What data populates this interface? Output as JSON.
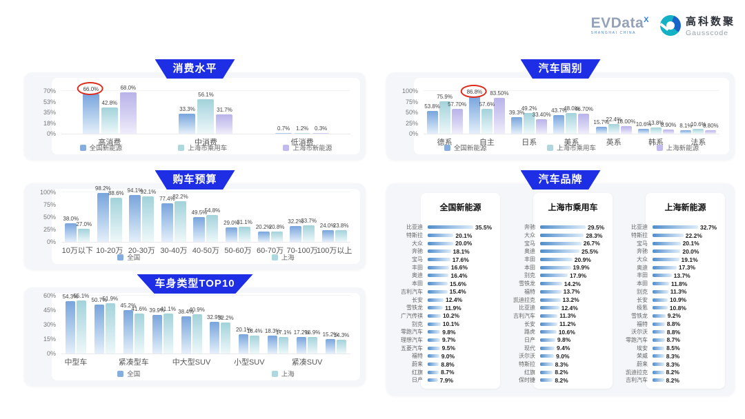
{
  "header": {
    "evdata": "EVData",
    "evdata_sup": "X",
    "evdata_subtitle": "SHANGHAI CHINA",
    "gausscode_cn": "高科数聚",
    "gausscode_en": "Gausscode"
  },
  "colors": {
    "badge_blue": "#1d2ee4",
    "series_blue": "#85aede",
    "series_teal": "#aed8de",
    "series_purple": "#c0bbec",
    "annotation_red": "#dd2b1b"
  },
  "chart_data": [
    {
      "id": "consumption",
      "type": "bar",
      "title": "消费水平",
      "y_ticks": [
        "70%",
        "53%",
        "35%",
        "18%",
        "0%"
      ],
      "ymax": 70,
      "categories": [
        "高消费",
        "中消费",
        "低消费"
      ],
      "series": [
        {
          "name": "全国新能源",
          "color": "blue",
          "values": [
            66.0,
            33.3,
            0.7
          ],
          "labels": [
            "66.0%",
            "33.3%",
            "0.7%"
          ]
        },
        {
          "name": "上海市乘用车",
          "color": "teal",
          "values": [
            42.8,
            56.1,
            1.2
          ],
          "labels": [
            "42.8%",
            "56.1%",
            "1.2%"
          ]
        },
        {
          "name": "上海市新能源",
          "color": "purple",
          "values": [
            68.0,
            31.7,
            0.3
          ],
          "labels": [
            "68.0%",
            "31.7%",
            "0.3%"
          ]
        }
      ],
      "annotation": {
        "shape": "red-circle",
        "series": 0,
        "category": 0,
        "label": "66.0%"
      }
    },
    {
      "id": "budget",
      "type": "bar",
      "title": "购车预算",
      "y_ticks": [
        "100%",
        "75%",
        "50%",
        "25%",
        "0%"
      ],
      "ymax": 100,
      "categories": [
        "10万以下",
        "10-20万",
        "20-30万",
        "30-40万",
        "40-50万",
        "50-60万",
        "60-70万",
        "70-100万",
        "100万以上"
      ],
      "series": [
        {
          "name": "全国",
          "color": "blue",
          "values": [
            38.0,
            98.2,
            94.1,
            77.4,
            49.5,
            29.0,
            20.2,
            32.2,
            24.0
          ],
          "labels": [
            "38.0%",
            "98.2%",
            "94.1%",
            "77.4%",
            "49.5%",
            "29.0%",
            "20.2%",
            "32.2%",
            "24.0%"
          ]
        },
        {
          "name": "上海",
          "color": "teal",
          "values": [
            27.0,
            88.6,
            92.1,
            82.2,
            54.8,
            31.1,
            20.8,
            33.7,
            23.8
          ],
          "labels": [
            "27.0%",
            "88.6%",
            "92.1%",
            "82.2%",
            "54.8%",
            "31.1%",
            "20.8%",
            "33.7%",
            "23.8%"
          ]
        }
      ]
    },
    {
      "id": "bodytype",
      "type": "bar",
      "title": "车身类型TOP10",
      "y_ticks": [
        "60%",
        "45%",
        "30%",
        "15%",
        "0%"
      ],
      "ymax": 60,
      "categories": [
        "中型车",
        "",
        "紧凑型车",
        "",
        "中大型SUV",
        "",
        "小型SUV",
        "",
        "紧凑SUV",
        ""
      ],
      "series": [
        {
          "name": "全国",
          "color": "blue",
          "values": [
            54.3,
            50.7,
            45.2,
            39.9,
            38.4,
            32.9,
            20.1,
            18.3,
            17.2,
            15.2
          ],
          "labels": [
            "54.3%",
            "50.7%",
            "45.2%",
            "39.9%",
            "38.4%",
            "32.9%",
            "20.1%",
            "18.3%",
            "17.2%",
            "15.2%"
          ]
        },
        {
          "name": "上海",
          "color": "teal",
          "values": [
            55.1,
            51.9,
            41.6,
            41.1,
            40.9,
            32.2,
            18.4,
            17.1,
            16.9,
            14.3
          ],
          "labels": [
            "55.1%",
            "51.9%",
            "41.6%",
            "41.1%",
            "40.9%",
            "32.2%",
            "18.4%",
            "17.1%",
            "16.9%",
            "14.3%"
          ]
        }
      ]
    },
    {
      "id": "country",
      "type": "bar",
      "title": "汽车国别",
      "y_ticks": [
        "100%",
        "75%",
        "50%",
        "25%",
        "0%"
      ],
      "ymax": 100,
      "categories": [
        "德系",
        "自主",
        "日系",
        "美系",
        "英系",
        "韩系",
        "法系"
      ],
      "series": [
        {
          "name": "全国新能源",
          "color": "blue",
          "values": [
            53.8,
            86.8,
            39.3,
            43.7,
            15.7,
            10.6,
            8.1
          ],
          "labels": [
            "53.8%",
            "86.8%",
            "39.3%",
            "43.7%",
            "15.7%",
            "10.6%",
            "8.1%"
          ]
        },
        {
          "name": "上海市乘用车",
          "color": "teal",
          "values": [
            75.9,
            57.6,
            49.2,
            48.0,
            22.4,
            13.8,
            10.6
          ],
          "labels": [
            "75.9%",
            "57.6%",
            "49.2%",
            "48.0%",
            "22.4%",
            "13.8%",
            "10.6%"
          ]
        },
        {
          "name": "上海新能源",
          "color": "purple",
          "values": [
            57.7,
            83.5,
            33.4,
            46.7,
            18.0,
            8.9,
            8.8
          ],
          "labels": [
            "57.70%",
            "83.50%",
            "33.40%",
            "46.70%",
            "18.00%",
            "8.90%",
            "8.80%"
          ]
        }
      ],
      "annotation": {
        "shape": "red-circle",
        "series": 0,
        "category": 1,
        "label": "86.8%"
      }
    },
    {
      "id": "brands",
      "type": "table",
      "title": "汽车品牌",
      "tables": [
        {
          "title": "全国新能源",
          "rows": [
            [
              "比亚迪",
              35.5
            ],
            [
              "特斯拉",
              20.1
            ],
            [
              "大众",
              20.0
            ],
            [
              "奔驰",
              18.1
            ],
            [
              "宝马",
              17.6
            ],
            [
              "丰田",
              16.6
            ],
            [
              "奥迪",
              16.4
            ],
            [
              "本田",
              15.6
            ],
            [
              "吉利汽车",
              15.4
            ],
            [
              "长安",
              12.4
            ],
            [
              "雪铁龙",
              11.9
            ],
            [
              "广汽传祺",
              10.2
            ],
            [
              "别克",
              10.1
            ],
            [
              "零跑汽车",
              9.8
            ],
            [
              "理想汽车",
              9.7
            ],
            [
              "五菱汽车",
              9.5
            ],
            [
              "福特",
              9.0
            ],
            [
              "蔚来",
              8.8
            ],
            [
              "红旗",
              8.7
            ],
            [
              "日产",
              7.9
            ]
          ]
        },
        {
          "title": "上海市乘用车",
          "rows": [
            [
              "奔驰",
              29.5
            ],
            [
              "大众",
              28.3
            ],
            [
              "宝马",
              26.7
            ],
            [
              "奥迪",
              25.5
            ],
            [
              "丰田",
              20.9
            ],
            [
              "本田",
              19.9
            ],
            [
              "别克",
              17.9
            ],
            [
              "雪铁龙",
              14.2
            ],
            [
              "福特",
              13.7
            ],
            [
              "凯迪拉克",
              13.2
            ],
            [
              "比亚迪",
              12.4
            ],
            [
              "吉利汽车",
              11.3
            ],
            [
              "长安",
              11.2
            ],
            [
              "路虎",
              10.6
            ],
            [
              "日产",
              9.8
            ],
            [
              "现代",
              9.4
            ],
            [
              "沃尔沃",
              9.0
            ],
            [
              "特斯拉",
              8.3
            ],
            [
              "红旗",
              8.2
            ],
            [
              "保时捷",
              8.2
            ]
          ]
        },
        {
          "title": "上海新能源",
          "rows": [
            [
              "比亚迪",
              32.7
            ],
            [
              "特斯拉",
              22.2
            ],
            [
              "宝马",
              20.1
            ],
            [
              "奔驰",
              20.0
            ],
            [
              "大众",
              19.1
            ],
            [
              "奥迪",
              17.3
            ],
            [
              "丰田",
              13.7
            ],
            [
              "本田",
              11.8
            ],
            [
              "别克",
              11.3
            ],
            [
              "长安",
              10.9
            ],
            [
              "极氪",
              10.8
            ],
            [
              "雪铁龙",
              9.2
            ],
            [
              "福特",
              8.8
            ],
            [
              "沃尔沃",
              8.8
            ],
            [
              "零跑汽车",
              8.7
            ],
            [
              "埃安",
              8.5
            ],
            [
              "荣威",
              8.3
            ],
            [
              "蔚来",
              8.3
            ],
            [
              "凯迪拉克",
              8.2
            ],
            [
              "吉利汽车",
              8.2
            ]
          ]
        }
      ]
    }
  ]
}
